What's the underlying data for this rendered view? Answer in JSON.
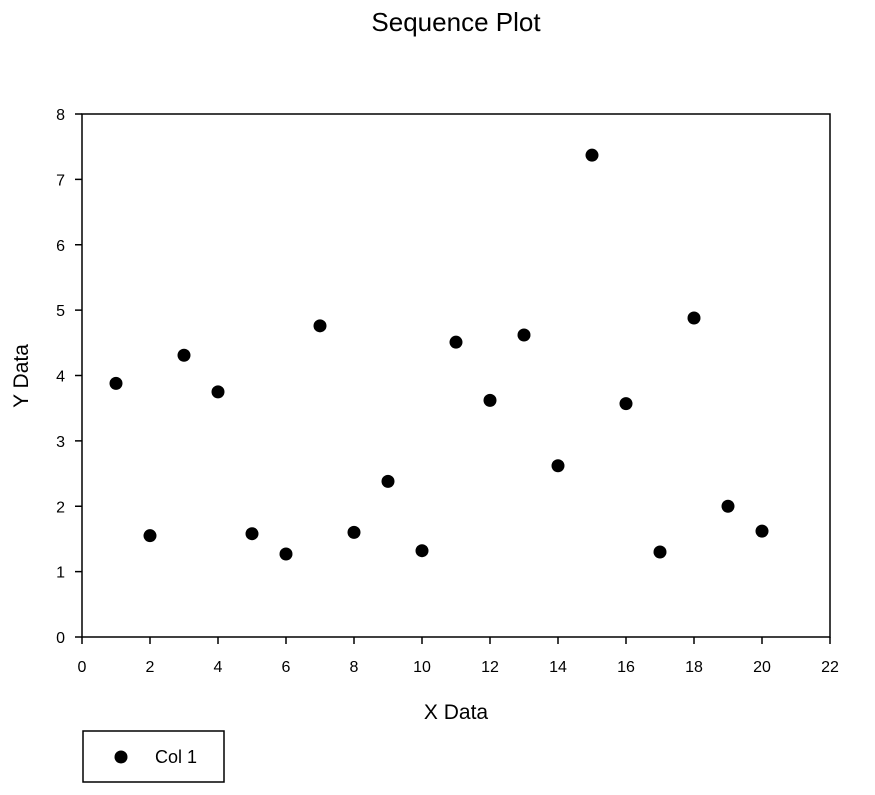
{
  "chart_data": {
    "type": "scatter",
    "title": "Sequence Plot",
    "xlabel": "X Data",
    "ylabel": "Y Data",
    "xlim": [
      0,
      22
    ],
    "ylim": [
      0,
      8
    ],
    "xticks": [
      "0",
      "2",
      "4",
      "6",
      "8",
      "10",
      "12",
      "14",
      "16",
      "18",
      "20",
      "22"
    ],
    "yticks": [
      "0",
      "1",
      "2",
      "3",
      "4",
      "5",
      "6",
      "7",
      "8"
    ],
    "grid": false,
    "legend_position": "bottom-left",
    "series": [
      {
        "name": "Col 1",
        "color": "#000000",
        "marker": "circle",
        "x": [
          1,
          2,
          3,
          4,
          5,
          6,
          7,
          8,
          9,
          10,
          11,
          12,
          13,
          14,
          15,
          16,
          17,
          18,
          19,
          20
        ],
        "y": [
          3.88,
          1.55,
          4.31,
          3.75,
          1.58,
          1.27,
          4.76,
          1.6,
          2.38,
          1.32,
          4.51,
          3.62,
          4.62,
          2.62,
          7.37,
          3.57,
          1.3,
          4.88,
          2.0,
          1.62
        ]
      }
    ]
  }
}
